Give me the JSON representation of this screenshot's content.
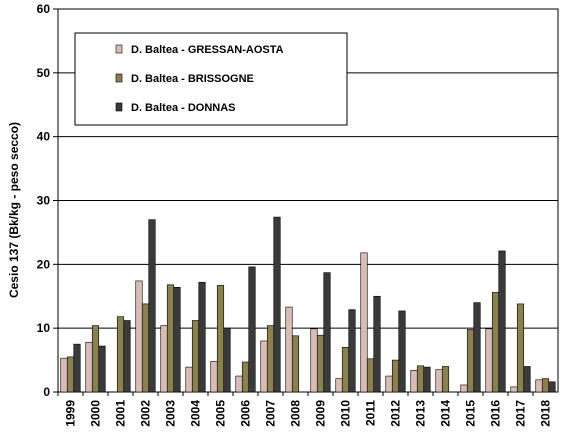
{
  "chart_data": {
    "type": "bar",
    "title": "",
    "xlabel": "",
    "ylabel": "Cesio 137 (Bk/kg - peso secco)",
    "ylim": [
      0,
      60
    ],
    "yticks": [
      0,
      10,
      20,
      30,
      40,
      50,
      60
    ],
    "grid": "horizontal",
    "legend_position": "top-left",
    "categories": [
      "1999",
      "2000",
      "2001",
      "2002",
      "2003",
      "2004",
      "2005",
      "2006",
      "2007",
      "2008",
      "2009",
      "2010",
      "2011",
      "2012",
      "2013",
      "2014",
      "2015",
      "2016",
      "2017",
      "2018"
    ],
    "series": [
      {
        "name": "D. Baltea - GRESSAN-AOSTA",
        "color": "#d9bcb5",
        "values": [
          5.3,
          7.8,
          0,
          17.4,
          10.4,
          3.9,
          4.8,
          2.5,
          8.0,
          13.3,
          9.9,
          2.1,
          21.8,
          2.5,
          3.4,
          3.5,
          1.1,
          9.9,
          0.8,
          1.9
        ]
      },
      {
        "name": "D. Baltea - BRISSOGNE",
        "color": "#8b8050",
        "values": [
          5.5,
          10.4,
          11.8,
          13.8,
          16.8,
          11.2,
          16.7,
          4.7,
          10.4,
          8.8,
          8.9,
          7.0,
          5.2,
          5.0,
          4.1,
          4.0,
          9.8,
          15.6,
          13.8,
          2.1
        ]
      },
      {
        "name": "D. Baltea - DONNAS",
        "color": "#3a3a3a",
        "values": [
          7.5,
          7.2,
          11.2,
          27.0,
          16.4,
          17.2,
          10.0,
          19.6,
          27.4,
          0,
          18.7,
          12.9,
          15.0,
          12.7,
          3.9,
          0,
          14.0,
          22.1,
          4.0,
          1.6
        ]
      }
    ]
  }
}
